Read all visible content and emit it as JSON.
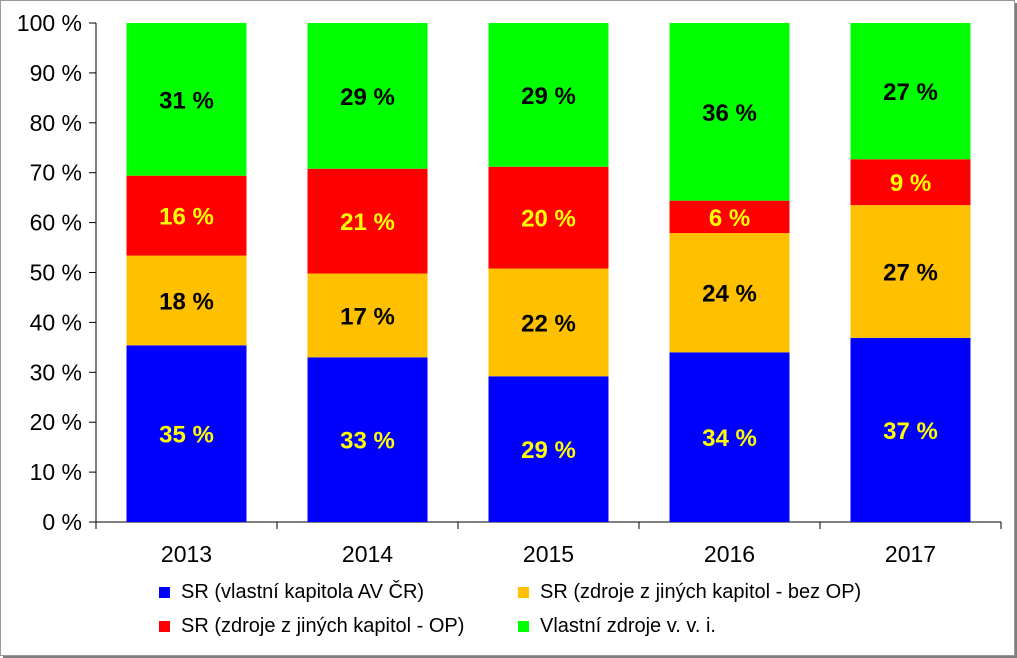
{
  "chart_data": {
    "type": "bar",
    "stacked": true,
    "percent_stacked": true,
    "title": "",
    "xlabel": "",
    "ylabel": "",
    "categories": [
      "2013",
      "2014",
      "2015",
      "2016",
      "2017"
    ],
    "ylim": [
      0,
      100
    ],
    "yticks": [
      0,
      10,
      20,
      30,
      40,
      50,
      60,
      70,
      80,
      90,
      100
    ],
    "ytick_labels": [
      "0 %",
      "10 %",
      "20 %",
      "30 %",
      "40 %",
      "50 %",
      "60 %",
      "70 %",
      "80 %",
      "90 %",
      "100 %"
    ],
    "grid": false,
    "legend_position": "bottom",
    "series": [
      {
        "name": "SR (vlastní kapitola AV ČR)",
        "color": "#0000ff",
        "label_color": "#ffff00",
        "values": [
          35.4,
          33.0,
          29.2,
          34.0,
          36.9
        ],
        "labels": [
          "35 %",
          "33 %",
          "29 %",
          "34 %",
          "37 %"
        ]
      },
      {
        "name": "SR (zdroje z jiných kapitol - bez OP)",
        "color": "#ffc000",
        "label_color": "#000000",
        "values": [
          18.0,
          16.8,
          21.6,
          23.9,
          26.6
        ],
        "labels": [
          "18 %",
          "17 %",
          "22 %",
          "24 %",
          "27 %"
        ]
      },
      {
        "name": "SR (zdroje z jiných kapitol - OP)",
        "color": "#ff0000",
        "label_color": "#ffff00",
        "values": [
          16.0,
          21.0,
          20.4,
          6.5,
          9.2
        ],
        "labels": [
          "16 %",
          "21 %",
          "20 %",
          "6 %",
          "9 %"
        ]
      },
      {
        "name": "Vlastní zdroje v. v. i.",
        "color": "#00ff00",
        "label_color": "#000000",
        "values": [
          30.6,
          29.2,
          28.8,
          35.6,
          27.3
        ],
        "labels": [
          "31 %",
          "29 %",
          "29 %",
          "36 %",
          "27 %"
        ]
      }
    ]
  }
}
